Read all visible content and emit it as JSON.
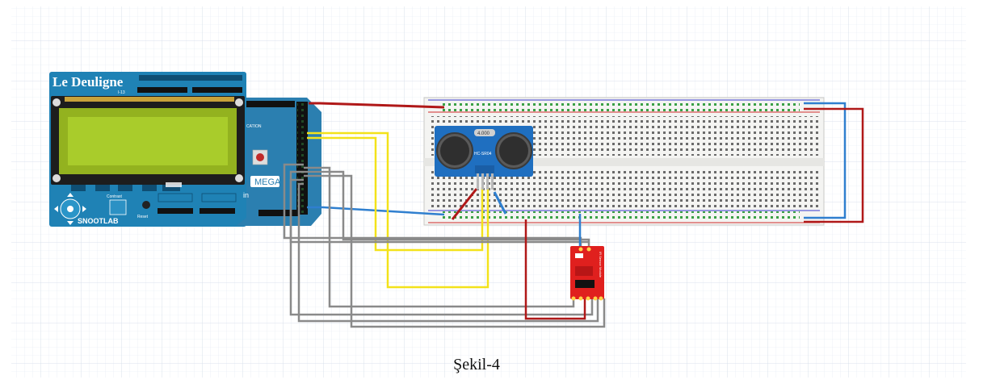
{
  "caption": "Şekil-4",
  "lcd_shield": {
    "brand": "Le Deuligne",
    "brand_sub": "I-13",
    "logo": "SNOOTLAB",
    "labels": [
      "Contrast",
      "Reset"
    ]
  },
  "arduino": {
    "model": "MEGA",
    "text": "CATION",
    "pin_suffix": "in"
  },
  "ultrasonic_sensor": {
    "model": "HC-SR04",
    "crystal": "4.000"
  },
  "sensor_module": {
    "label": "IR Sensor Module"
  },
  "colors": {
    "arduino": "#2b7fb0",
    "shield": "#1f82b5",
    "lcd_screen": "#a9cc2b",
    "lcd_frame": "#1d1d1d",
    "sensor_board": "#1f6fc0",
    "module_board": "#e0201e",
    "wire_red": "#b01818",
    "wire_blue": "#2f7fcf",
    "wire_yellow": "#f3e21a",
    "wire_gray": "#8a8a8a",
    "breadboard": "#f4f4f2",
    "grid": "#dde4ee"
  }
}
